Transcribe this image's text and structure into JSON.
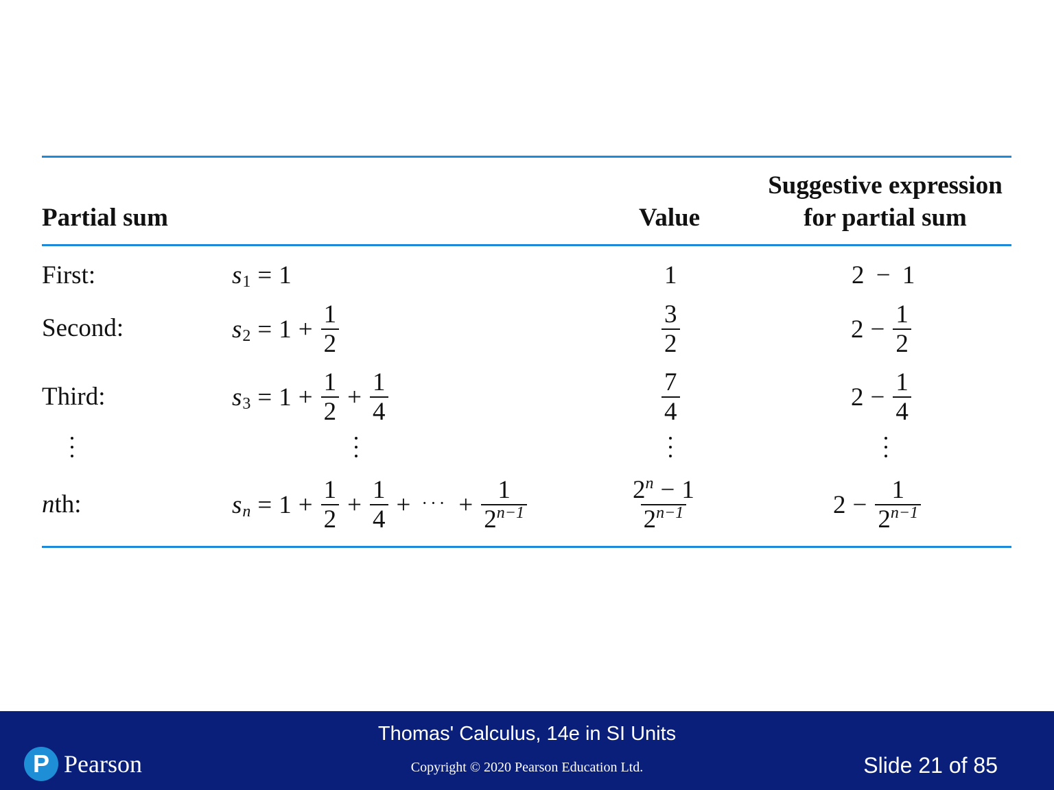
{
  "table": {
    "headers": {
      "partial_sum": "Partial sum",
      "value": "Value",
      "suggestive_line1": "Suggestive expression",
      "suggestive_line2": "for partial sum"
    },
    "rows": [
      {
        "label": "First:",
        "s_sub": "1",
        "value": "1",
        "expr": "2 − 1"
      },
      {
        "label": "Second:",
        "s_sub": "2",
        "value_num": "3",
        "value_den": "2",
        "expr_left": "2",
        "expr_num": "1",
        "expr_den": "2"
      },
      {
        "label": "Third:",
        "s_sub": "3",
        "value_num": "7",
        "value_den": "4",
        "expr_left": "2",
        "expr_num": "1",
        "expr_den": "4"
      },
      {
        "label_var": "n",
        "label_rest": "th:",
        "s_sub": "n",
        "value_num_exp": "n",
        "value_den_exp": "n−1",
        "expr_left": "2",
        "expr_num": "1",
        "expr_den_exp": "n−1"
      }
    ],
    "math": {
      "s": "s",
      "eq": "=",
      "plus": "+",
      "minus": "−",
      "one": "1",
      "two": "2",
      "four": "4",
      "cdots": "···"
    }
  },
  "footer": {
    "title": "Thomas' Calculus, 14e in SI Units",
    "copyright": "Copyright © 2020 Pearson Education Ltd.",
    "slide": "Slide 21 of 85",
    "logo_letter": "P",
    "logo_text": "Pearson"
  },
  "colors": {
    "rule": "#1c8ad8",
    "footer_bg": "#0a1f7a",
    "logo": "#1e8fd6"
  }
}
